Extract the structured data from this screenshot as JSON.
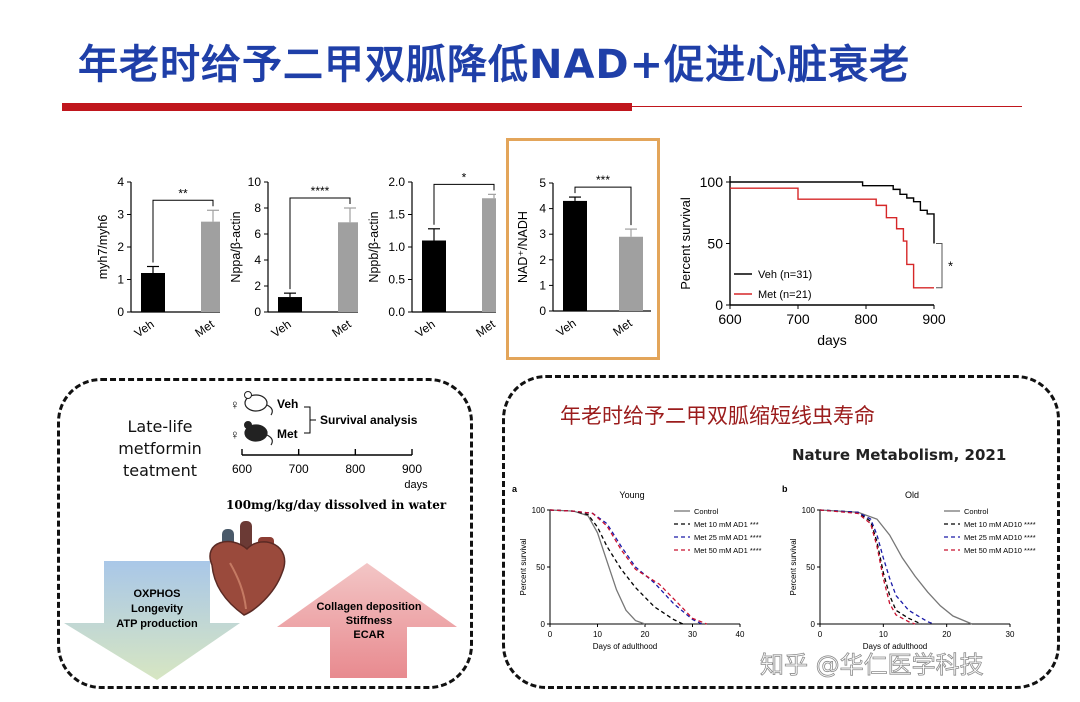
{
  "title": "年老时给予二甲双胍降低NAD+促进心脏衰老",
  "bar_charts": [
    {
      "ylabel": "myh7/myh6",
      "yticks": [
        "0",
        "1",
        "2",
        "3",
        "4"
      ],
      "ymax": 4,
      "sig": "**",
      "categories": [
        "Veh",
        "Met"
      ],
      "values": [
        1.2,
        2.78
      ],
      "errors": [
        0.2,
        0.35
      ]
    },
    {
      "ylabel": "Nppa/β-actin",
      "yticks": [
        "0",
        "2",
        "4",
        "6",
        "8",
        "10"
      ],
      "ymax": 10,
      "sig": "****",
      "categories": [
        "Veh",
        "Met"
      ],
      "values": [
        1.15,
        6.9
      ],
      "errors": [
        0.3,
        1.1
      ]
    },
    {
      "ylabel": "Nppb/β-actin",
      "yticks": [
        "0.0",
        "0.5",
        "1.0",
        "1.5",
        "2.0"
      ],
      "ymax": 2,
      "sig": "*",
      "categories": [
        "Veh",
        "Met"
      ],
      "values": [
        1.1,
        1.75
      ],
      "errors": [
        0.18,
        0.06
      ]
    },
    {
      "ylabel": "NAD⁺/NADH",
      "yticks": [
        "0",
        "1",
        "2",
        "3",
        "4",
        "5"
      ],
      "ymax": 5,
      "sig": "***",
      "categories": [
        "Veh",
        "Met"
      ],
      "values": [
        4.3,
        2.9
      ],
      "errors": [
        0.15,
        0.3
      ]
    }
  ],
  "survival": {
    "ylabel": "Percent survival",
    "xlabel": "days",
    "xticks": [
      "600",
      "700",
      "800",
      "900"
    ],
    "yticks": [
      "0",
      "50",
      "100"
    ],
    "legend": [
      {
        "label": "Veh (n=31)",
        "color": "#000000"
      },
      {
        "label": "Met (n=21)",
        "color": "#d62728"
      }
    ],
    "sig": "*"
  },
  "lower_left": {
    "side_label": "Late-life metformin teatment",
    "groups": [
      {
        "sex": "♀",
        "label": "Veh"
      },
      {
        "sex": "♀",
        "label": "Met"
      }
    ],
    "analysis": "Survival analysis",
    "timeline": [
      "600",
      "700",
      "800",
      "900"
    ],
    "timeline_unit": "days",
    "dose": "100mg/kg/day dissolved in water",
    "down_arrow": [
      "OXPHOS",
      "Longevity",
      "ATP production"
    ],
    "up_arrow": [
      "Collagen deposition",
      "Stiffness",
      "ECAR"
    ]
  },
  "lower_right": {
    "heading": "年老时给予二甲双胍缩短线虫寿命",
    "citation": "Nature Metabolism, 2021",
    "watermark": "知乎 @华仁医学科技",
    "panels": [
      {
        "letter": "a",
        "title": "Young",
        "xlabel": "Days of adulthood",
        "ylabel": "Percent survival",
        "xticks": [
          "0",
          "10",
          "20",
          "30",
          "40"
        ],
        "yticks": [
          "0",
          "50",
          "100"
        ],
        "legend": [
          {
            "label": "Control",
            "color": "#777777",
            "style": "solid"
          },
          {
            "label": "Met 10 mM AD1 ***",
            "color": "#000000",
            "style": "dash"
          },
          {
            "label": "Met 25 mM AD1 ****",
            "color": "#1a1aa8",
            "style": "dash"
          },
          {
            "label": "Met 50 mM AD1 ****",
            "color": "#c8102e",
            "style": "dash"
          }
        ]
      },
      {
        "letter": "b",
        "title": "Old",
        "xlabel": "Days of adulthood",
        "ylabel": "Percent survival",
        "xticks": [
          "0",
          "10",
          "20",
          "30"
        ],
        "yticks": [
          "0",
          "50",
          "100"
        ],
        "legend": [
          {
            "label": "Control",
            "color": "#777777",
            "style": "solid"
          },
          {
            "label": "Met 10 mM AD10 ****",
            "color": "#000000",
            "style": "dash"
          },
          {
            "label": "Met 25 mM AD10 ****",
            "color": "#1a1aa8",
            "style": "dash"
          },
          {
            "label": "Met 50 mM AD10 ****",
            "color": "#c8102e",
            "style": "dash"
          }
        ]
      }
    ]
  },
  "chart_data": [
    {
      "type": "bar",
      "categories": [
        "Veh",
        "Met"
      ],
      "values": [
        1.2,
        2.78
      ],
      "ylabel": "myh7/myh6",
      "ylim": [
        0,
        4
      ]
    },
    {
      "type": "bar",
      "categories": [
        "Veh",
        "Met"
      ],
      "values": [
        1.15,
        6.9
      ],
      "ylabel": "Nppa/β-actin",
      "ylim": [
        0,
        10
      ]
    },
    {
      "type": "bar",
      "categories": [
        "Veh",
        "Met"
      ],
      "values": [
        1.1,
        1.75
      ],
      "ylabel": "Nppb/β-actin",
      "ylim": [
        0,
        2
      ]
    },
    {
      "type": "bar",
      "categories": [
        "Veh",
        "Met"
      ],
      "values": [
        4.3,
        2.9
      ],
      "ylabel": "NAD⁺/NADH",
      "ylim": [
        0,
        5
      ]
    },
    {
      "type": "line",
      "xlabel": "days",
      "ylabel": "Percent survival",
      "xlim": [
        600,
        900
      ],
      "ylim": [
        0,
        100
      ],
      "series": [
        {
          "name": "Veh (n=31)",
          "x": [
            600,
            790,
            795,
            840,
            850,
            860,
            870,
            880,
            890,
            900
          ],
          "y": [
            100,
            100,
            97,
            94,
            90,
            87,
            84,
            77,
            74,
            50
          ]
        },
        {
          "name": "Met (n=21)",
          "x": [
            600,
            690,
            700,
            795,
            815,
            830,
            845,
            855,
            860,
            870
          ],
          "y": [
            95,
            95,
            86,
            86,
            81,
            71,
            62,
            52,
            33,
            14
          ]
        }
      ]
    }
  ]
}
